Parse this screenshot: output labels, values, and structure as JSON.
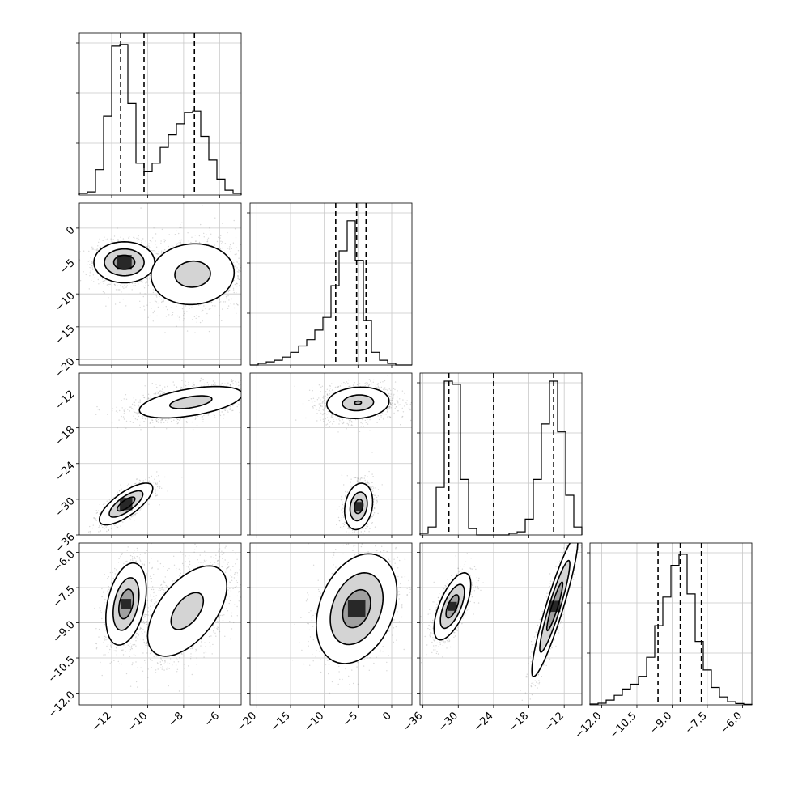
{
  "chart_data": {
    "type": "corner",
    "parameters": [
      {
        "range": [
          -13.8,
          -4.8
        ],
        "ticks": [
          -12,
          -10,
          -8,
          -6
        ]
      },
      {
        "range": [
          -21,
          3
        ],
        "ticks": [
          -20,
          -15,
          -10,
          -5,
          0
        ]
      },
      {
        "range": [
          -36.5,
          -9.0
        ],
        "ticks": [
          -36,
          -30,
          -24,
          -18,
          -12
        ]
      },
      {
        "range": [
          -12.5,
          -5.6
        ],
        "ticks": [
          -12.0,
          -10.5,
          -9.0,
          -7.5,
          -6.0
        ]
      }
    ],
    "tick_labels": [
      [
        "−12",
        "−10",
        "−8",
        "−6"
      ],
      [
        "−20",
        "−15",
        "−10",
        "−5",
        "0"
      ],
      [
        "−36",
        "−30",
        "−24",
        "−18",
        "−12"
      ],
      [
        "−12.0",
        "−10.5",
        "−9.0",
        "−7.5",
        "−6.0"
      ]
    ],
    "histograms": [
      {
        "bins": [
          -13.8,
          -13.35,
          -12.9,
          -12.45,
          -12.0,
          -11.55,
          -11.1,
          -10.65,
          -10.2,
          -9.75,
          -9.3,
          -8.85,
          -8.4,
          -7.95,
          -7.5,
          -7.05,
          -6.6,
          -6.15,
          -5.7,
          -5.25,
          -4.8
        ],
        "counts": [
          0.01,
          0.02,
          0.16,
          0.5,
          0.94,
          0.95,
          0.58,
          0.2,
          0.15,
          0.2,
          0.3,
          0.38,
          0.45,
          0.52,
          0.53,
          0.37,
          0.22,
          0.1,
          0.03,
          0.01
        ],
        "quantiles": [
          -11.5,
          -10.2,
          -7.4
        ]
      },
      {
        "bins": [
          -21.0,
          -19.8,
          -18.6,
          -17.4,
          -16.2,
          -15.0,
          -13.8,
          -12.6,
          -11.4,
          -10.2,
          -9.0,
          -7.8,
          -6.6,
          -5.4,
          -4.2,
          -3.0,
          -1.8,
          -0.6,
          0.6,
          1.8,
          3.0
        ],
        "counts": [
          0.0,
          0.01,
          0.02,
          0.03,
          0.05,
          0.08,
          0.12,
          0.16,
          0.22,
          0.3,
          0.5,
          0.72,
          0.91,
          0.66,
          0.28,
          0.08,
          0.03,
          0.01,
          0.0,
          0.0
        ],
        "quantiles": [
          -8.3,
          -5.2,
          -3.8
        ]
      },
      {
        "bins": [
          -36.5,
          -35.125,
          -33.75,
          -32.375,
          -31.0,
          -29.625,
          -28.25,
          -26.875,
          -25.5,
          -24.125,
          -22.75,
          -21.375,
          -20.0,
          -18.625,
          -17.25,
          -15.875,
          -14.5,
          -13.125,
          -11.75,
          -10.375,
          -9.0
        ],
        "counts": [
          0.01,
          0.05,
          0.3,
          0.97,
          0.95,
          0.35,
          0.04,
          0.0,
          0.0,
          0.0,
          0.0,
          0.01,
          0.02,
          0.1,
          0.35,
          0.7,
          0.97,
          0.65,
          0.25,
          0.05
        ],
        "quantiles": [
          -31.6,
          -24.0,
          -13.8
        ]
      },
      {
        "bins": [
          -12.5,
          -12.155,
          -11.81,
          -11.465,
          -11.12,
          -10.775,
          -10.43,
          -10.085,
          -9.74,
          -9.395,
          -9.05,
          -8.705,
          -8.36,
          -8.015,
          -7.67,
          -7.325,
          -6.98,
          -6.635,
          -6.29,
          -5.945,
          -5.6
        ],
        "counts": [
          0.005,
          0.01,
          0.03,
          0.06,
          0.1,
          0.13,
          0.18,
          0.3,
          0.5,
          0.68,
          0.88,
          0.95,
          0.7,
          0.4,
          0.22,
          0.11,
          0.05,
          0.02,
          0.008,
          0.003
        ],
        "quantiles": [
          -9.6,
          -8.65,
          -7.75
        ]
      }
    ],
    "pairs": [
      {
        "x": 0,
        "y": 1,
        "ylim": [
          -20.8,
          3.8
        ],
        "modes": [
          {
            "cx": -11.3,
            "cy": -5.2,
            "sx": 1.3,
            "sy": 2.4,
            "rho": 0.0,
            "levels": [
              0.45,
              0.85,
              1.3
            ],
            "core": true
          },
          {
            "cx": -7.5,
            "cy": -7.0,
            "sx": 2.2,
            "sy": 4.4,
            "rho": 0.05,
            "levels": [
              0.45,
              1.05
            ],
            "core": false
          }
        ]
      },
      {
        "x": 0,
        "y": 2,
        "ylim": [
          -36.0,
          -8.8
        ],
        "modes": [
          {
            "cx": -11.2,
            "cy": -30.8,
            "sx": 1.1,
            "sy": 2.6,
            "rho": 0.75,
            "levels": [
              0.45,
              0.85,
              1.35
            ],
            "core": true
          },
          {
            "cx": -7.6,
            "cy": -13.7,
            "sx": 2.6,
            "sy": 2.4,
            "rho": 0.5,
            "levels": [
              0.45,
              1.1
            ],
            "core": false
          }
        ]
      },
      {
        "x": 1,
        "y": 2,
        "ylim": [
          -36.0,
          -8.8
        ],
        "modes": [
          {
            "cx": -4.9,
            "cy": -31.2,
            "sx": 1.6,
            "sy": 3.0,
            "rho": 0.2,
            "levels": [
              0.4,
              0.8,
              1.3
            ],
            "core": true
          },
          {
            "cx": -5.0,
            "cy": -13.8,
            "sx": 4.2,
            "sy": 2.4,
            "rho": 0.1,
            "levels": [
              0.12,
              0.55,
              1.1
            ],
            "core": false
          }
        ]
      },
      {
        "x": 0,
        "y": 3,
        "ylim": [
          -12.5,
          -5.6
        ],
        "modes": [
          {
            "cx": -11.2,
            "cy": -8.2,
            "sx": 0.9,
            "sy": 1.4,
            "rho": 0.35,
            "levels": [
              0.45,
              0.8,
              1.25
            ],
            "core": true
          },
          {
            "cx": -7.8,
            "cy": -8.5,
            "sx": 2.0,
            "sy": 1.75,
            "rho": 0.55,
            "levels": [
              0.45,
              1.1
            ],
            "core": false
          }
        ]
      },
      {
        "x": 1,
        "y": 3,
        "ylim": [
          -12.5,
          -5.6
        ],
        "modes": [
          {
            "cx": -5.2,
            "cy": -8.4,
            "sx": 4.6,
            "sy": 1.8,
            "rho": 0.3,
            "levels": [
              0.45,
              0.85,
              1.3
            ],
            "core": true
          }
        ]
      },
      {
        "x": 2,
        "y": 3,
        "ylim": [
          -12.5,
          -5.6
        ],
        "modes": [
          {
            "cx": -31.0,
            "cy": -8.3,
            "sx": 2.4,
            "sy": 1.1,
            "rho": 0.65,
            "levels": [
              0.45,
              0.85,
              1.3
            ],
            "core": true
          },
          {
            "cx": -13.6,
            "cy": -8.3,
            "sx": 3.0,
            "sy": 2.3,
            "rho": 0.92,
            "levels": [
              0.45,
              0.85,
              1.3
            ],
            "core": true
          }
        ]
      }
    ],
    "grid": true,
    "colors": {
      "line": "#000000",
      "grid": "#c8c8c8",
      "scatter": "#8c8c8c",
      "fill": "#a0a0a0",
      "core": "#000000"
    }
  }
}
